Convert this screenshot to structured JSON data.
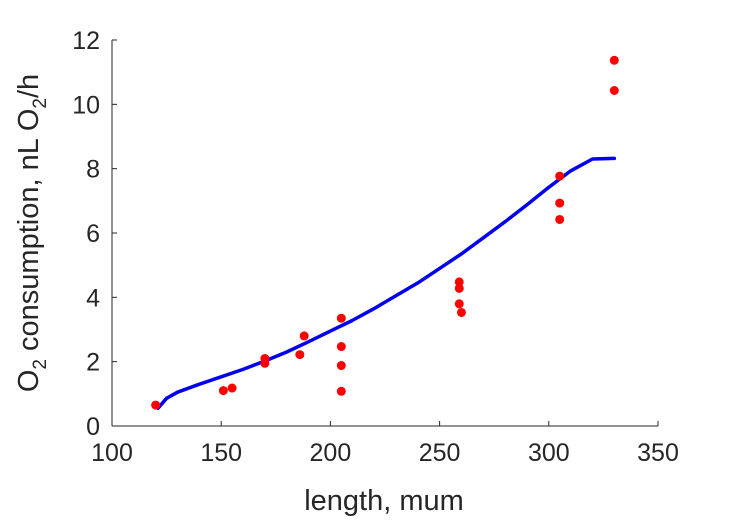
{
  "chart_data": {
    "type": "scatter",
    "xlabel": "length, mum",
    "ylabel": {
      "prefix": "O",
      "prefix_sub": "2",
      "middle": " consumption, nL O",
      "middle_sub": "2",
      "suffix": "/h"
    },
    "xlim": [
      100,
      350
    ],
    "ylim": [
      0,
      12
    ],
    "x_ticks": [
      100,
      150,
      200,
      250,
      300,
      350
    ],
    "y_ticks": [
      0,
      2,
      4,
      6,
      8,
      10,
      12
    ],
    "grid": false,
    "series": [
      {
        "kind": "points",
        "color": "#ff0000",
        "points": [
          [
            120,
            0.65
          ],
          [
            151,
            1.1
          ],
          [
            155,
            1.18
          ],
          [
            170,
            2.1
          ],
          [
            170,
            1.95
          ],
          [
            186,
            2.22
          ],
          [
            188,
            2.8
          ],
          [
            205,
            3.35
          ],
          [
            205,
            2.47
          ],
          [
            205,
            1.88
          ],
          [
            205,
            1.08
          ],
          [
            259,
            4.48
          ],
          [
            259,
            4.28
          ],
          [
            259,
            3.8
          ],
          [
            260,
            3.53
          ],
          [
            305,
            7.77
          ],
          [
            305,
            6.93
          ],
          [
            305,
            6.42
          ],
          [
            330,
            11.37
          ],
          [
            330,
            10.43
          ]
        ]
      },
      {
        "kind": "line",
        "color": "#0000ee",
        "points": [
          [
            121,
            0.55
          ],
          [
            125,
            0.86
          ],
          [
            130,
            1.05
          ],
          [
            140,
            1.3
          ],
          [
            150,
            1.53
          ],
          [
            160,
            1.76
          ],
          [
            170,
            2.02
          ],
          [
            180,
            2.3
          ],
          [
            190,
            2.62
          ],
          [
            200,
            2.95
          ],
          [
            210,
            3.28
          ],
          [
            220,
            3.65
          ],
          [
            230,
            4.05
          ],
          [
            240,
            4.45
          ],
          [
            250,
            4.9
          ],
          [
            260,
            5.35
          ],
          [
            270,
            5.85
          ],
          [
            280,
            6.35
          ],
          [
            290,
            6.88
          ],
          [
            300,
            7.42
          ],
          [
            310,
            7.93
          ],
          [
            320,
            8.3
          ],
          [
            330,
            8.32
          ]
        ]
      }
    ]
  }
}
